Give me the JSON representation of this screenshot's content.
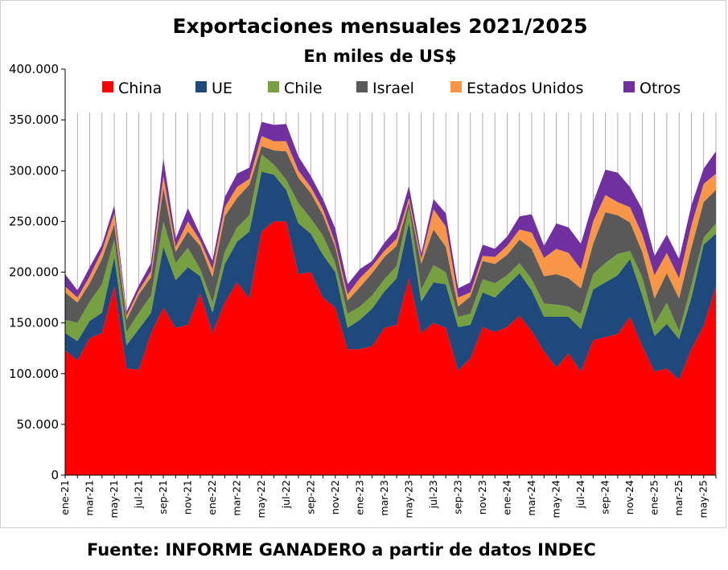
{
  "title": "Exportaciones mensuales 2021/2025",
  "subtitle": "En miles de US$",
  "source": "Fuente: INFORME GANADERO a partir de datos INDEC",
  "chart_data": {
    "type": "area",
    "stacked": true,
    "grid": "vertical lines at each month",
    "legend_position": "top",
    "ylim": [
      0,
      400000
    ],
    "y_ticks": [
      "0",
      "50.000",
      "100.000",
      "150.000",
      "200.000",
      "250.000",
      "300.000",
      "350.000",
      "400.000"
    ],
    "y_tick_values": [
      0,
      50000,
      100000,
      150000,
      200000,
      250000,
      300000,
      350000,
      400000
    ],
    "x": [
      "ene-21",
      "feb-21",
      "mar-21",
      "abr-21",
      "may-21",
      "jun-21",
      "jul-21",
      "ago-21",
      "sep-21",
      "oct-21",
      "nov-21",
      "dic-21",
      "ene-22",
      "feb-22",
      "mar-22",
      "abr-22",
      "may-22",
      "jun-22",
      "jul-22",
      "ago-22",
      "sep-22",
      "oct-22",
      "nov-22",
      "dic-22",
      "ene-23",
      "feb-23",
      "mar-23",
      "abr-23",
      "may-23",
      "jun-23",
      "jul-23",
      "ago-23",
      "sep-23",
      "oct-23",
      "nov-23",
      "dic-23",
      "ene-24",
      "feb-24",
      "mar-24",
      "abr-24",
      "may-24",
      "jun-24",
      "jul-24",
      "ago-24",
      "sep-24",
      "oct-24",
      "nov-24",
      "dic-24",
      "ene-25",
      "feb-25",
      "mar-25",
      "abr-25",
      "may-25",
      "jun-25"
    ],
    "x_tick_labels": [
      "ene-21",
      "mar-21",
      "may-21",
      "jul-21",
      "sep-21",
      "nov-21",
      "ene-22",
      "mar-22",
      "may-22",
      "jul-22",
      "sep-22",
      "nov-22",
      "ene-23",
      "mar-23",
      "may-23",
      "jul-23",
      "sep-23",
      "nov-23",
      "ene-24",
      "mar-24",
      "may-24",
      "jul-24",
      "sep-24",
      "nov-24",
      "ene-25",
      "mar-25",
      "may-25"
    ],
    "series": [
      {
        "name": "China",
        "color": "#ff0000",
        "values": [
          123000,
          113000,
          135000,
          140000,
          186000,
          105000,
          104000,
          140000,
          165000,
          145000,
          148000,
          179000,
          140000,
          170000,
          190000,
          174000,
          240000,
          250000,
          250000,
          198000,
          200000,
          175000,
          165000,
          124000,
          124000,
          127000,
          145000,
          148000,
          194000,
          140000,
          150000,
          145000,
          103000,
          115000,
          146000,
          141000,
          146000,
          157000,
          142000,
          122000,
          106000,
          120000,
          102000,
          133000,
          136000,
          139000,
          156000,
          127000,
          102000,
          105000,
          94000,
          124000,
          147000,
          186000
        ]
      },
      {
        "name": "UE",
        "color": "#1f497d",
        "values": [
          17000,
          19000,
          17000,
          20000,
          29000,
          23000,
          40000,
          20000,
          60000,
          47000,
          57000,
          17000,
          20000,
          38000,
          40000,
          66000,
          59000,
          46000,
          31000,
          50000,
          38000,
          42000,
          35000,
          21000,
          29000,
          37000,
          36000,
          46000,
          55000,
          31000,
          40000,
          43000,
          43000,
          33000,
          34000,
          34000,
          41000,
          42000,
          40000,
          34000,
          50000,
          36000,
          42000,
          50000,
          54000,
          58000,
          57000,
          50000,
          35000,
          44000,
          40000,
          51000,
          80000,
          52000
        ]
      },
      {
        "name": "Chile",
        "color": "#77a040",
        "values": [
          13000,
          18000,
          19000,
          28000,
          17000,
          13000,
          16000,
          17000,
          25000,
          17000,
          19000,
          7000,
          10000,
          12000,
          14000,
          16000,
          17000,
          10000,
          10000,
          20000,
          15000,
          19000,
          9000,
          14000,
          13000,
          13000,
          12000,
          12000,
          15000,
          12000,
          17000,
          12000,
          10000,
          11000,
          13000,
          14000,
          10000,
          10000,
          11000,
          13000,
          12000,
          10000,
          15000,
          15000,
          19000,
          21000,
          8000,
          18000,
          12000,
          21000,
          8000,
          12000,
          7000,
          10000
        ]
      },
      {
        "name": "Israel",
        "color": "#595959",
        "values": [
          27000,
          20000,
          18000,
          25000,
          15000,
          12000,
          18000,
          18000,
          33000,
          11000,
          16000,
          23000,
          25000,
          35000,
          29000,
          30000,
          8000,
          14000,
          28000,
          25000,
          25000,
          20000,
          16000,
          13000,
          19000,
          22000,
          22000,
          20000,
          5000,
          25000,
          35000,
          25000,
          10000,
          17000,
          18000,
          19000,
          20000,
          23000,
          30000,
          27000,
          30000,
          28000,
          25000,
          30000,
          50000,
          38000,
          28000,
          25000,
          25000,
          29000,
          32000,
          37000,
          35000,
          33000
        ]
      },
      {
        "name": "Estados Unidos",
        "color": "#f79646",
        "values": [
          6000,
          5000,
          7000,
          8000,
          11000,
          4000,
          4000,
          6000,
          12000,
          5000,
          10000,
          5000,
          8000,
          9000,
          11000,
          6000,
          10000,
          9000,
          10000,
          7000,
          6000,
          6000,
          4000,
          6000,
          9000,
          7000,
          6000,
          7000,
          4000,
          5000,
          20000,
          20000,
          9000,
          4000,
          5000,
          7000,
          9000,
          10000,
          16000,
          18000,
          25000,
          25000,
          19000,
          22000,
          17000,
          13000,
          15000,
          17000,
          23000,
          20000,
          20000,
          22000,
          18000,
          16000
        ]
      },
      {
        "name": "Otros",
        "color": "#7030a0",
        "values": [
          12000,
          7000,
          9000,
          6000,
          8000,
          4000,
          5000,
          8000,
          17000,
          8000,
          13000,
          6000,
          8000,
          10000,
          13000,
          11000,
          14000,
          16000,
          17000,
          14000,
          11000,
          10000,
          14000,
          10000,
          9000,
          5000,
          8000,
          10000,
          12000,
          5000,
          10000,
          13000,
          9000,
          10000,
          11000,
          8000,
          9000,
          13000,
          18000,
          12000,
          25000,
          25000,
          25000,
          19000,
          25000,
          29000,
          20000,
          25000,
          19000,
          18000,
          19000,
          20000,
          15000,
          22000
        ]
      }
    ]
  }
}
